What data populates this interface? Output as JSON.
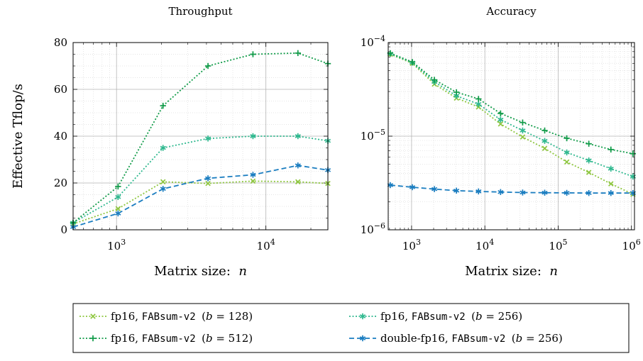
{
  "chart_data": [
    {
      "id": "throughput",
      "type": "line",
      "title": "Throughput",
      "xlabel": "Matrix size: n",
      "ylabel": "Effective Tflop/s",
      "xscale": "log",
      "yscale": "linear",
      "xlim": [
        512,
        26000
      ],
      "ylim": [
        0,
        80
      ],
      "xticks": [
        {
          "value": 1000,
          "label": "10^3"
        },
        {
          "value": 10000,
          "label": "10^4"
        }
      ],
      "yticks": [
        {
          "value": 0,
          "label": "0"
        },
        {
          "value": 20,
          "label": "20"
        },
        {
          "value": 40,
          "label": "40"
        },
        {
          "value": 60,
          "label": "60"
        },
        {
          "value": 80,
          "label": "80"
        }
      ],
      "grid": true,
      "series": [
        {
          "key": "fp16_128",
          "x": [
            512,
            1024,
            2048,
            4096,
            8192,
            16384,
            26000
          ],
          "values": [
            2.5,
            9,
            20.5,
            19.8,
            20.8,
            20.5,
            19.8
          ]
        },
        {
          "key": "fp16_256",
          "x": [
            512,
            1024,
            2048,
            4096,
            8192,
            16384,
            26000
          ],
          "values": [
            3,
            14,
            35,
            39,
            40,
            40,
            38
          ]
        },
        {
          "key": "fp16_512",
          "x": [
            512,
            1024,
            2048,
            4096,
            8192,
            16384,
            26000
          ],
          "values": [
            3,
            18.5,
            53,
            70,
            75,
            75.5,
            71
          ]
        },
        {
          "key": "double_fp16_256",
          "x": [
            512,
            1024,
            2048,
            4096,
            8192,
            16384,
            26000
          ],
          "values": [
            1.2,
            7,
            17.5,
            22,
            23.5,
            27.5,
            25.5
          ]
        }
      ]
    },
    {
      "id": "accuracy",
      "type": "line",
      "title": "Accuracy",
      "xlabel": "Matrix size: n",
      "ylabel": "",
      "xscale": "log",
      "yscale": "log",
      "xlim": [
        480,
        1100000
      ],
      "ylim": [
        1e-06,
        0.0001
      ],
      "xticks": [
        {
          "value": 1000,
          "label": "10^3"
        },
        {
          "value": 10000,
          "label": "10^4"
        },
        {
          "value": 100000,
          "label": "10^5"
        },
        {
          "value": 1000000,
          "label": "10^6"
        }
      ],
      "yticks": [
        {
          "value": 1e-06,
          "label": "10^-6"
        },
        {
          "value": 1e-05,
          "label": "10^-5"
        },
        {
          "value": 0.0001,
          "label": "10^-4"
        }
      ],
      "grid": true,
      "series": [
        {
          "key": "fp16_128",
          "x": [
            512,
            1024,
            2048,
            4096,
            8192,
            16384,
            32768,
            65536,
            131072,
            262144,
            524288,
            1048576
          ],
          "values": [
            7.5e-05,
            6e-05,
            3.6e-05,
            2.55e-05,
            2.05e-05,
            1.35e-05,
            9.8e-06,
            7.4e-06,
            5.3e-06,
            4.1e-06,
            3.1e-06,
            2.4e-06
          ]
        },
        {
          "key": "fp16_256",
          "x": [
            512,
            1024,
            2048,
            4096,
            8192,
            16384,
            32768,
            65536,
            131072,
            262144,
            524288,
            1048576
          ],
          "values": [
            7.6e-05,
            6.1e-05,
            3.8e-05,
            2.7e-05,
            2.2e-05,
            1.5e-05,
            1.15e-05,
            8.9e-06,
            6.7e-06,
            5.5e-06,
            4.5e-06,
            3.7e-06
          ]
        },
        {
          "key": "fp16_512",
          "x": [
            512,
            1024,
            2048,
            4096,
            8192,
            16384,
            32768,
            65536,
            131072,
            262144,
            524288,
            1048576
          ],
          "values": [
            7.7e-05,
            6.2e-05,
            4e-05,
            2.95e-05,
            2.5e-05,
            1.75e-05,
            1.4e-05,
            1.15e-05,
            9.5e-06,
            8.3e-06,
            7.2e-06,
            6.5e-06
          ]
        },
        {
          "key": "double_fp16_256",
          "x": [
            512,
            1024,
            2048,
            4096,
            8192,
            16384,
            32768,
            65536,
            131072,
            262144,
            524288,
            1048576
          ],
          "values": [
            3e-06,
            2.85e-06,
            2.72e-06,
            2.62e-06,
            2.57e-06,
            2.53e-06,
            2.5e-06,
            2.49e-06,
            2.48e-06,
            2.47e-06,
            2.47e-06,
            2.47e-06
          ]
        }
      ]
    }
  ],
  "series_styles": {
    "fp16_128": {
      "color": "#8ec63f",
      "marker": "x",
      "dash": "2 2.5"
    },
    "fp16_256": {
      "color": "#2eb88e",
      "marker": "asterisk",
      "dash": "2 2.5"
    },
    "fp16_512": {
      "color": "#109b48",
      "marker": "plus",
      "dash": "2 2.5"
    },
    "double_fp16_256": {
      "color": "#1a7dc0",
      "marker": "asterisk",
      "dash": "7 4"
    }
  },
  "legend": {
    "position": "bottom",
    "entries": [
      {
        "key": "fp16_128",
        "pre": "fp16, ",
        "code": "FABsum-v2",
        "math": "(b = 128)"
      },
      {
        "key": "fp16_256",
        "pre": "fp16, ",
        "code": "FABsum-v2",
        "math": "(b = 256)"
      },
      {
        "key": "fp16_512",
        "pre": "fp16, ",
        "code": "FABsum-v2",
        "math": "(b = 512)"
      },
      {
        "key": "double_fp16_256",
        "pre": "double-fp16, ",
        "code": "FABsum-v2",
        "math": "(b = 256)"
      }
    ]
  }
}
